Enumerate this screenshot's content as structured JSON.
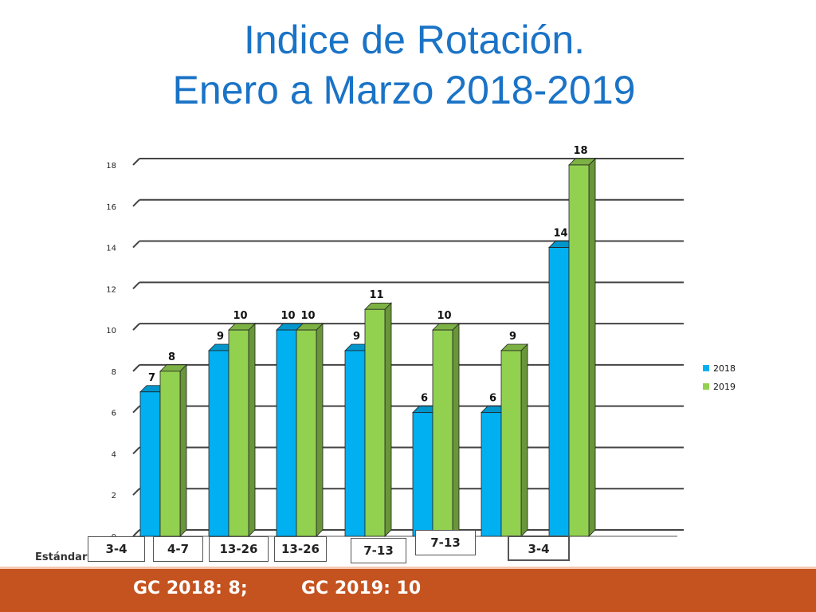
{
  "title": {
    "line1": "Indice de Rotación.",
    "line2": "Enero a Marzo 2018-2019"
  },
  "chart_data": {
    "type": "bar",
    "categories": [
      "",
      "",
      "",
      "",
      "",
      "",
      ""
    ],
    "series": [
      {
        "name": "2018",
        "color": "#00b0f0",
        "values": [
          7,
          9,
          10,
          9,
          6,
          6,
          14
        ]
      },
      {
        "name": "2019",
        "color": "#92d050",
        "values": [
          8,
          10,
          10,
          11,
          10,
          9,
          18
        ]
      }
    ],
    "ylim": [
      0,
      18
    ],
    "yticks": [
      0,
      2,
      4,
      6,
      8,
      10,
      12,
      14,
      16,
      18
    ],
    "legend_position": "right",
    "grid": true,
    "style": "3d-clustered"
  },
  "standard": {
    "label": "Estándar",
    "values": [
      "3-4",
      "4-7",
      "13-26",
      "13-26",
      "7-13",
      "7-13",
      "3-4"
    ]
  },
  "footer": {
    "gc2018": "GC 2018: 8;",
    "gc2019": "GC 2019: 10"
  }
}
